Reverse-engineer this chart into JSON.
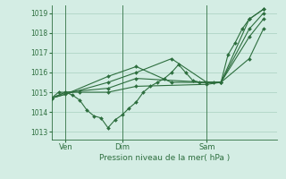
{
  "xlabel": "Pression niveau de la mer( hPa )",
  "bg_color": "#d4ede4",
  "grid_color": "#a8cfc0",
  "line_color": "#2d6e3e",
  "tick_color": "#2d6e3e",
  "text_color": "#2d6e3e",
  "ylim": [
    1012.6,
    1019.4
  ],
  "yticks": [
    1013,
    1014,
    1015,
    1016,
    1017,
    1018,
    1019
  ],
  "xlim": [
    0,
    96
  ],
  "ven_x": 6,
  "dim_x": 30,
  "sam_x": 66,
  "series": [
    [
      0,
      1014.7,
      3,
      1015.0,
      6,
      1015.0,
      9,
      1014.85,
      12,
      1014.6,
      15,
      1014.1,
      18,
      1013.8,
      21,
      1013.7,
      24,
      1013.2,
      27,
      1013.6,
      30,
      1013.85,
      33,
      1014.2,
      36,
      1014.5,
      39,
      1015.0,
      42,
      1015.3,
      45,
      1015.5,
      48,
      1015.7,
      51,
      1016.0,
      54,
      1016.4,
      57,
      1016.0,
      60,
      1015.6,
      63,
      1015.5,
      66,
      1015.5,
      69,
      1015.5,
      72,
      1015.5,
      75,
      1016.9,
      78,
      1017.5,
      81,
      1018.2,
      84,
      1018.7,
      90,
      1019.2
    ],
    [
      0,
      1014.7,
      6,
      1015.0,
      12,
      1015.0,
      24,
      1015.0,
      36,
      1015.3,
      66,
      1015.4,
      72,
      1015.5,
      84,
      1018.7,
      90,
      1019.2
    ],
    [
      0,
      1014.7,
      6,
      1015.0,
      24,
      1015.2,
      36,
      1015.7,
      66,
      1015.5,
      72,
      1015.5,
      84,
      1018.2,
      90,
      1019.0
    ],
    [
      0,
      1014.7,
      24,
      1015.5,
      36,
      1016.0,
      51,
      1016.7,
      66,
      1015.5,
      72,
      1015.5,
      84,
      1017.8,
      90,
      1018.7
    ],
    [
      0,
      1014.7,
      6,
      1014.9,
      24,
      1015.8,
      36,
      1016.3,
      51,
      1015.5,
      66,
      1015.5,
      72,
      1015.5,
      84,
      1016.7,
      90,
      1018.2
    ]
  ]
}
